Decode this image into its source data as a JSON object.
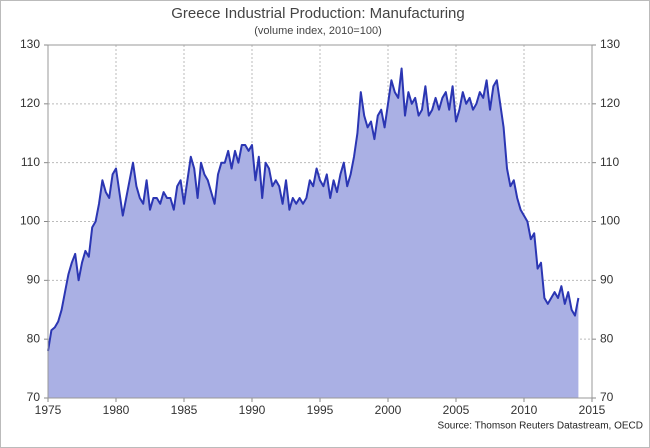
{
  "chart_data": {
    "type": "area",
    "title": "Greece Industrial Production: Manufacturing",
    "subtitle": "(volume index, 2010=100)",
    "source": "Source: Thomson Reuters Datastream, OECD",
    "color": "#2b36b3",
    "fill": "#aab0e4",
    "grid": true,
    "xlim": [
      1975,
      2015
    ],
    "xticks": [
      1975,
      1980,
      1985,
      1990,
      1995,
      2000,
      2005,
      2010,
      2015
    ],
    "ylim": [
      70,
      130
    ],
    "yticks": [
      70,
      80,
      90,
      100,
      110,
      120,
      130
    ],
    "y2lim": [
      70,
      130
    ],
    "y2ticks": [
      70,
      80,
      90,
      100,
      110,
      120,
      130
    ],
    "x": [
      1975,
      1975.25,
      1975.5,
      1975.75,
      1976,
      1976.25,
      1976.5,
      1976.75,
      1977,
      1977.25,
      1977.5,
      1977.75,
      1978,
      1978.25,
      1978.5,
      1978.75,
      1979,
      1979.25,
      1979.5,
      1979.75,
      1980,
      1980.25,
      1980.5,
      1980.75,
      1981,
      1981.25,
      1981.5,
      1981.75,
      1982,
      1982.25,
      1982.5,
      1982.75,
      1983,
      1983.25,
      1983.5,
      1983.75,
      1984,
      1984.25,
      1984.5,
      1984.75,
      1985,
      1985.25,
      1985.5,
      1985.75,
      1986,
      1986.25,
      1986.5,
      1986.75,
      1987,
      1987.25,
      1987.5,
      1987.75,
      1988,
      1988.25,
      1988.5,
      1988.75,
      1989,
      1989.25,
      1989.5,
      1989.75,
      1990,
      1990.25,
      1990.5,
      1990.75,
      1991,
      1991.25,
      1991.5,
      1991.75,
      1992,
      1992.25,
      1992.5,
      1992.75,
      1993,
      1993.25,
      1993.5,
      1993.75,
      1994,
      1994.25,
      1994.5,
      1994.75,
      1995,
      1995.25,
      1995.5,
      1995.75,
      1996,
      1996.25,
      1996.5,
      1996.75,
      1997,
      1997.25,
      1997.5,
      1997.75,
      1998,
      1998.25,
      1998.5,
      1998.75,
      1999,
      1999.25,
      1999.5,
      1999.75,
      2000,
      2000.25,
      2000.5,
      2000.75,
      2001,
      2001.25,
      2001.5,
      2001.75,
      2002,
      2002.25,
      2002.5,
      2002.75,
      2003,
      2003.25,
      2003.5,
      2003.75,
      2004,
      2004.25,
      2004.5,
      2004.75,
      2005,
      2005.25,
      2005.5,
      2005.75,
      2006,
      2006.25,
      2006.5,
      2006.75,
      2007,
      2007.25,
      2007.5,
      2007.75,
      2008,
      2008.25,
      2008.5,
      2008.75,
      2009,
      2009.25,
      2009.5,
      2009.75,
      2010,
      2010.25,
      2010.5,
      2010.75,
      2011,
      2011.25,
      2011.5,
      2011.75,
      2012,
      2012.25,
      2012.5,
      2012.75,
      2013,
      2013.25,
      2013.5,
      2013.75,
      2014
    ],
    "values": [
      78,
      81.5,
      82,
      83,
      85,
      88,
      91,
      93,
      94.5,
      90,
      93,
      95,
      94,
      99,
      100,
      103,
      107,
      105,
      104,
      108,
      109,
      105,
      101,
      104,
      107,
      110,
      106,
      104,
      103,
      107,
      102,
      104,
      104,
      103,
      105,
      104,
      104,
      102,
      106,
      107,
      103,
      107,
      111,
      109,
      104,
      110,
      108,
      107,
      105,
      103,
      108,
      110,
      110,
      112,
      109,
      112,
      110,
      113,
      113,
      112,
      113,
      107,
      111,
      104,
      110,
      109,
      106,
      107,
      106,
      103,
      107,
      102,
      104,
      103,
      104,
      103,
      104,
      107,
      106,
      109,
      107,
      106,
      108,
      104,
      107,
      105,
      108,
      110,
      106,
      108,
      111,
      115,
      122,
      118,
      116,
      117,
      114,
      118,
      119,
      116,
      120,
      124,
      122,
      121,
      126,
      118,
      122,
      120,
      121,
      118,
      119,
      123,
      118,
      119,
      121,
      119,
      121,
      122,
      119,
      123,
      117,
      119,
      122,
      120,
      121,
      119,
      120,
      122,
      121,
      124,
      119,
      123,
      124,
      120,
      116,
      109,
      106,
      107,
      104,
      102,
      101,
      100,
      97,
      98,
      92,
      93,
      87,
      86,
      87,
      88,
      87,
      89,
      86,
      88,
      85,
      84,
      87
    ]
  }
}
